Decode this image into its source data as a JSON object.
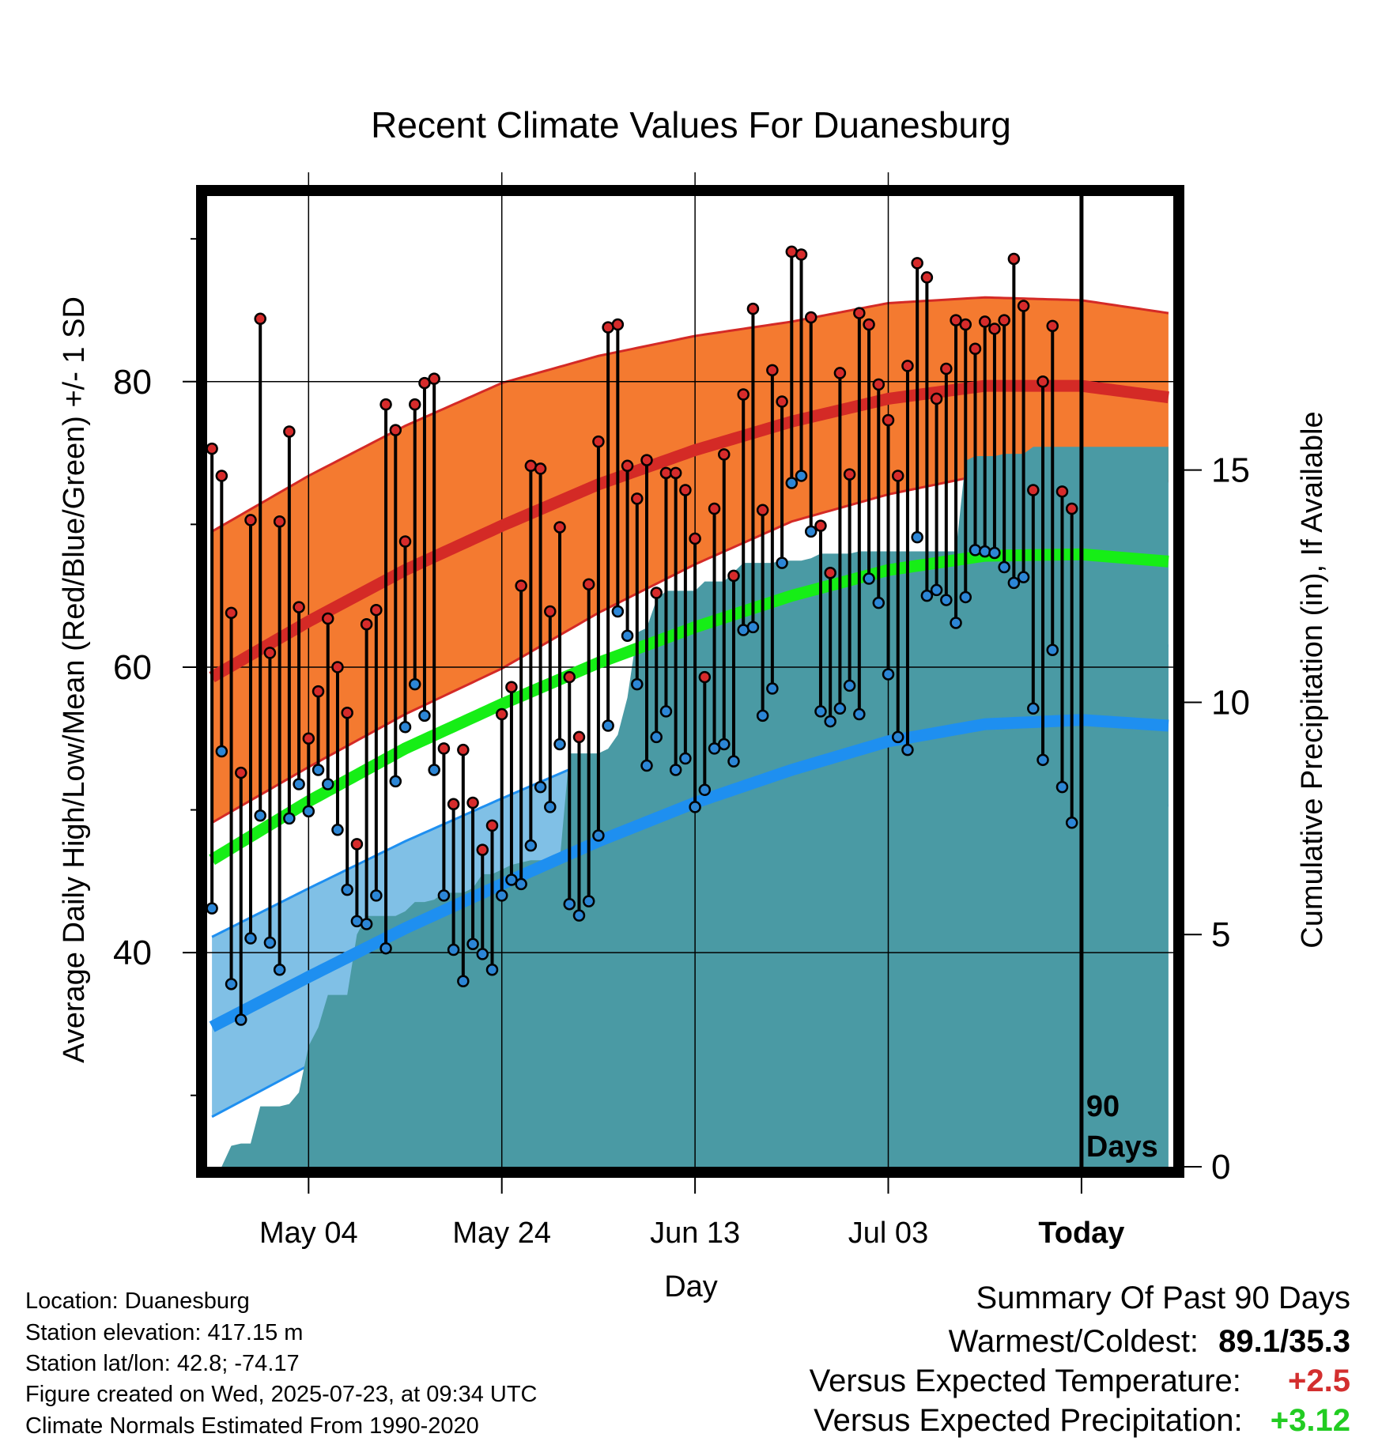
{
  "chart_data": {
    "type": "line",
    "title": "Recent Climate Values For Duanesburg",
    "xlabel": "Day",
    "ylabel": "Average Daily High/Low/Mean (Red/Blue/Green) +/- 1 SD",
    "y2label": "Cumulative Precipitation (in), If Available",
    "x_tick_labels": [
      "May 04",
      "May 24",
      "Jun 13",
      "Jul 03",
      "Today"
    ],
    "x_tick_days": [
      10,
      30,
      50,
      70,
      90
    ],
    "xlim": [
      -0.5,
      99.5
    ],
    "ylim": [
      25,
      93
    ],
    "y_ticks": [
      40,
      60,
      80
    ],
    "y2lim": [
      0,
      20.9
    ],
    "y2_ticks": [
      0,
      5,
      10,
      15
    ],
    "today_marker_label": "90 Days",
    "today_day": 90,
    "grid": true,
    "colors": {
      "high_band": "#f47a30",
      "high_line": "#d42a26",
      "low_band": "#80c0e6",
      "low_line": "#1e8ff0",
      "mean_line": "#16ee16",
      "precip": "#4a9aa4",
      "high_dot": "#d62b2b",
      "low_dot": "#2c86d6",
      "today_line": "#000000"
    },
    "normal_high": [
      [
        0,
        59.3
      ],
      [
        10,
        63.2
      ],
      [
        20,
        66.8
      ],
      [
        30,
        69.9
      ],
      [
        40,
        72.8
      ],
      [
        50,
        75.2
      ],
      [
        60,
        77.2
      ],
      [
        70,
        78.8
      ],
      [
        80,
        79.7
      ],
      [
        90,
        79.7
      ],
      [
        99,
        78.9
      ]
    ],
    "normal_high_sd": [
      [
        0,
        10.2
      ],
      [
        10,
        10.2
      ],
      [
        20,
        10.1
      ],
      [
        30,
        10.0
      ],
      [
        40,
        9.0
      ],
      [
        50,
        8.0
      ],
      [
        60,
        7.0
      ],
      [
        70,
        6.7
      ],
      [
        80,
        6.2
      ],
      [
        90,
        6.0
      ],
      [
        99,
        5.9
      ]
    ],
    "normal_low": [
      [
        0,
        34.8
      ],
      [
        10,
        38.3
      ],
      [
        20,
        41.7
      ],
      [
        30,
        44.8
      ],
      [
        40,
        47.8
      ],
      [
        50,
        50.5
      ],
      [
        60,
        52.8
      ],
      [
        70,
        54.8
      ],
      [
        80,
        56.0
      ],
      [
        90,
        56.3
      ],
      [
        99,
        55.9
      ]
    ],
    "normal_low_sd": [
      [
        0,
        6.3
      ],
      [
        10,
        6.2
      ],
      [
        20,
        6.1
      ],
      [
        30,
        6.0
      ],
      [
        40,
        5.9
      ],
      [
        50,
        5.8
      ],
      [
        60,
        5.7
      ],
      [
        70,
        5.6
      ],
      [
        80,
        5.6
      ],
      [
        90,
        5.6
      ],
      [
        99,
        5.6
      ]
    ],
    "normal_mean": [
      [
        0,
        46.5
      ],
      [
        10,
        50.6
      ],
      [
        20,
        54.3
      ],
      [
        30,
        57.4
      ],
      [
        40,
        60.3
      ],
      [
        50,
        62.8
      ],
      [
        60,
        65.0
      ],
      [
        70,
        66.8
      ],
      [
        80,
        67.8
      ],
      [
        90,
        67.9
      ],
      [
        99,
        67.4
      ]
    ],
    "series": [
      {
        "name": "High",
        "values": [
          75.3,
          73.4,
          63.8,
          52.6,
          70.3,
          84.4,
          61.0,
          70.2,
          76.5,
          64.2,
          55.0,
          58.3,
          63.4,
          60.0,
          56.8,
          47.6,
          63.0,
          64.0,
          78.4,
          76.6,
          68.8,
          78.4,
          79.9,
          80.2,
          54.3,
          50.4,
          54.2,
          50.5,
          47.2,
          48.9,
          56.7,
          58.6,
          65.7,
          74.1,
          73.9,
          63.9,
          69.8,
          59.3,
          55.1,
          65.8,
          75.8,
          83.8,
          84.0,
          74.1,
          71.8,
          74.5,
          65.2,
          73.6,
          73.6,
          72.4,
          69.0,
          59.3,
          71.1,
          74.9,
          66.4,
          79.1,
          85.1,
          71.0,
          80.8,
          78.6,
          89.1,
          88.9,
          84.5,
          69.9,
          66.6,
          80.6,
          73.5,
          84.8,
          84.0,
          79.8,
          77.3,
          73.4,
          81.1,
          88.3,
          87.3,
          78.8,
          80.9,
          84.3,
          84.0,
          82.3,
          84.2,
          83.7,
          84.3,
          88.6,
          85.3,
          72.4,
          80.0,
          83.9,
          72.3,
          71.1
        ]
      },
      {
        "name": "Low",
        "values": [
          43.1,
          54.1,
          37.8,
          35.3,
          41.0,
          49.6,
          40.7,
          38.8,
          49.4,
          51.8,
          49.9,
          52.8,
          51.8,
          48.6,
          44.4,
          42.2,
          42.0,
          44.0,
          40.3,
          52.0,
          55.8,
          58.8,
          56.6,
          52.8,
          44.0,
          40.2,
          38.0,
          40.6,
          39.9,
          38.8,
          44.0,
          45.1,
          44.8,
          47.5,
          51.6,
          50.2,
          54.6,
          43.4,
          42.6,
          43.6,
          48.2,
          55.9,
          63.9,
          62.2,
          58.8,
          53.1,
          55.1,
          56.9,
          52.8,
          53.6,
          50.2,
          51.4,
          54.3,
          54.6,
          53.4,
          62.6,
          62.8,
          56.6,
          58.5,
          67.3,
          72.9,
          73.4,
          69.5,
          56.9,
          56.2,
          57.1,
          58.7,
          56.7,
          66.2,
          64.5,
          59.5,
          55.1,
          54.2,
          69.1,
          65.0,
          65.4,
          64.7,
          63.1,
          64.9,
          68.2,
          68.1,
          68.0,
          67.0,
          65.9,
          66.3,
          57.1,
          53.5,
          61.2,
          51.6,
          49.1
        ]
      }
    ],
    "precip_cumulative": [
      [
        0,
        0.0
      ],
      [
        1,
        0.0
      ],
      [
        2,
        0.45
      ],
      [
        3,
        0.5
      ],
      [
        4,
        0.5
      ],
      [
        5,
        1.3
      ],
      [
        6,
        1.3
      ],
      [
        7,
        1.3
      ],
      [
        8,
        1.35
      ],
      [
        9,
        1.6
      ],
      [
        10,
        2.6
      ],
      [
        11,
        3.0
      ],
      [
        12,
        3.7
      ],
      [
        13,
        3.7
      ],
      [
        14,
        3.7
      ],
      [
        15,
        5.0
      ],
      [
        16,
        5.4
      ],
      [
        17,
        5.4
      ],
      [
        18,
        5.4
      ],
      [
        19,
        5.4
      ],
      [
        20,
        5.5
      ],
      [
        21,
        5.7
      ],
      [
        22,
        5.7
      ],
      [
        23,
        5.75
      ],
      [
        24,
        5.9
      ],
      [
        25,
        5.9
      ],
      [
        26,
        5.9
      ],
      [
        27,
        6.0
      ],
      [
        28,
        6.3
      ],
      [
        29,
        6.3
      ],
      [
        30,
        6.4
      ],
      [
        31,
        6.5
      ],
      [
        32,
        6.55
      ],
      [
        33,
        6.6
      ],
      [
        34,
        6.6
      ],
      [
        35,
        6.6
      ],
      [
        36,
        6.6
      ],
      [
        37,
        8.9
      ],
      [
        38,
        8.9
      ],
      [
        39,
        8.9
      ],
      [
        40,
        8.9
      ],
      [
        41,
        9.0
      ],
      [
        42,
        9.3
      ],
      [
        43,
        10.1
      ],
      [
        44,
        11.5
      ],
      [
        45,
        11.6
      ],
      [
        46,
        12.2
      ],
      [
        47,
        12.4
      ],
      [
        48,
        12.4
      ],
      [
        49,
        12.4
      ],
      [
        50,
        12.4
      ],
      [
        51,
        12.6
      ],
      [
        52,
        12.6
      ],
      [
        53,
        12.6
      ],
      [
        54,
        12.8
      ],
      [
        55,
        13.0
      ],
      [
        56,
        13.0
      ],
      [
        57,
        13.0
      ],
      [
        58,
        13.0
      ],
      [
        59,
        13.05
      ],
      [
        60,
        13.05
      ],
      [
        61,
        13.05
      ],
      [
        62,
        13.1
      ],
      [
        63,
        13.2
      ],
      [
        64,
        13.2
      ],
      [
        65,
        13.2
      ],
      [
        66,
        13.2
      ],
      [
        67,
        13.25
      ],
      [
        68,
        13.25
      ],
      [
        69,
        13.25
      ],
      [
        70,
        13.25
      ],
      [
        71,
        13.25
      ],
      [
        72,
        13.25
      ],
      [
        73,
        13.25
      ],
      [
        74,
        13.25
      ],
      [
        75,
        13.25
      ],
      [
        76,
        13.25
      ],
      [
        77,
        13.25
      ],
      [
        78,
        15.2
      ],
      [
        79,
        15.3
      ],
      [
        80,
        15.3
      ],
      [
        81,
        15.3
      ],
      [
        82,
        15.35
      ],
      [
        83,
        15.35
      ],
      [
        84,
        15.35
      ],
      [
        85,
        15.5
      ],
      [
        86,
        15.5
      ],
      [
        87,
        15.5
      ],
      [
        88,
        15.5
      ],
      [
        89,
        15.5
      ],
      [
        90,
        15.5
      ],
      [
        99,
        15.5
      ]
    ]
  },
  "info": {
    "location": "Location: Duanesburg",
    "elevation": "Station elevation: 417.15 m",
    "latlon": "Station lat/lon: 42.8; -74.17",
    "created": "Figure created on Wed, 2025-07-23, at 09:34 UTC",
    "normals": "Climate Normals Estimated From 1990-2020"
  },
  "summary": {
    "heading": "Summary Of Past 90 Days",
    "warmest_coldest_label": "Warmest/Coldest:",
    "warmest_coldest_value": "89.1/35.3",
    "temp_label": "Versus Expected Temperature:",
    "temp_value": "+2.5",
    "temp_color": "#d32f2f",
    "precip_label": "Versus Expected Precipitation:",
    "precip_value": "+3.12",
    "precip_color": "#22cc22"
  }
}
